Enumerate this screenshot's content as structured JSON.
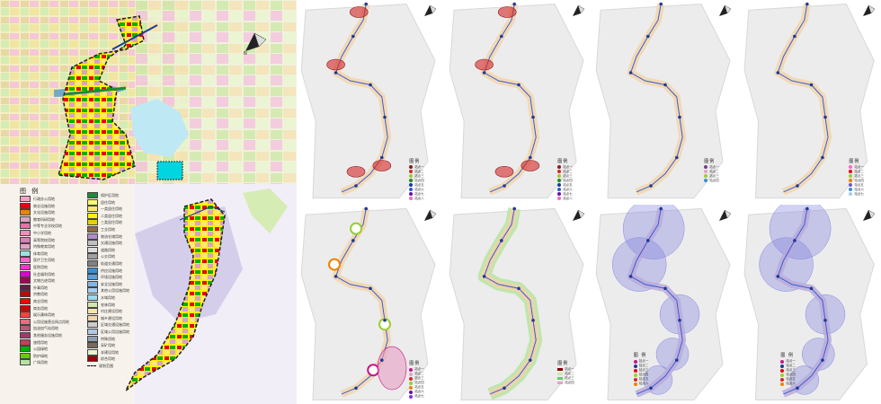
{
  "main_legend": {
    "title": "图 例",
    "column_a": [
      {
        "label": "行政办公用地",
        "color": "#f2a3c4"
      },
      {
        "label": "商业设施用地",
        "color": "#e60012"
      },
      {
        "label": "文化设施用地",
        "color": "#f08200"
      },
      {
        "label": "教育科研用地",
        "color": "#d9a3c4"
      },
      {
        "label": "中等专业学校用地",
        "color": "#ee6fa5"
      },
      {
        "label": "中小学用地",
        "color": "#ec8fbb"
      },
      {
        "label": "高等院校用地",
        "color": "#dd7fb6"
      },
      {
        "label": "特殊教育用地",
        "color": "#e8a0c6"
      },
      {
        "label": "体育用地",
        "color": "#9be3e2"
      },
      {
        "label": "医疗卫生用地",
        "color": "#ff66cc"
      },
      {
        "label": "医院用地",
        "color": "#ff33cc"
      },
      {
        "label": "社会福利用地",
        "color": "#e000d0"
      },
      {
        "label": "文物古迹用地",
        "color": "#a3005a"
      },
      {
        "label": "外事用地",
        "color": "#5f1f46"
      },
      {
        "label": "宗教用地",
        "color": "#c80000"
      },
      {
        "label": "商业用地",
        "color": "#ff0000"
      },
      {
        "label": "商务用地",
        "color": "#d40000"
      },
      {
        "label": "娱乐康体用地",
        "color": "#ff4040"
      },
      {
        "label": "公用设施营业网点用地",
        "color": "#e07080"
      },
      {
        "label": "加油加气站用地",
        "color": "#b85b7a"
      },
      {
        "label": "其他服务设施用地",
        "color": "#9a3d6d"
      },
      {
        "label": "旅馆用地",
        "color": "#c04060"
      },
      {
        "label": "公园绿地",
        "color": "#00b000"
      },
      {
        "label": "防护绿地",
        "color": "#66cc00"
      },
      {
        "label": "广场用地",
        "color": "#b7e3a0"
      }
    ],
    "column_b": [
      {
        "label": "保护区用地",
        "color": "#1f8a3a"
      },
      {
        "label": "居住用地",
        "color": "#ffff66"
      },
      {
        "label": "一类居住用地",
        "color": "#ffe680"
      },
      {
        "label": "二类居住用地",
        "color": "#fff200"
      },
      {
        "label": "三类居住用地",
        "color": "#e6d200"
      },
      {
        "label": "工业用地",
        "color": "#8c6a4a"
      },
      {
        "label": "物流仓储用地",
        "color": "#b08cc8"
      },
      {
        "label": "交通设施用地",
        "color": "#bfbfbf"
      },
      {
        "label": "道路用地",
        "color": "#dcdcdc"
      },
      {
        "label": "公交用地",
        "color": "#a0a0a0"
      },
      {
        "label": "轨道交通用地",
        "color": "#808080"
      },
      {
        "label": "供应设施用地",
        "color": "#3d8fd1"
      },
      {
        "label": "环境设施用地",
        "color": "#5aa0dc"
      },
      {
        "label": "安全设施用地",
        "color": "#7fb8e6"
      },
      {
        "label": "其他公用设施用地",
        "color": "#a3cdee"
      },
      {
        "label": "水域用地",
        "color": "#9fd9f0"
      },
      {
        "label": "农林用地",
        "color": "#cfe8a8"
      },
      {
        "label": "村庄建设用地",
        "color": "#f5e3b3"
      },
      {
        "label": "城乡建设用地",
        "color": "#f2d5a8"
      },
      {
        "label": "区域交通设施用地",
        "color": "#cccccc"
      },
      {
        "label": "区域公用设施用地",
        "color": "#b3c7e6"
      },
      {
        "label": "特殊用地",
        "color": "#8fa0b0"
      },
      {
        "label": "采矿用地",
        "color": "#7a6a5a"
      },
      {
        "label": "非建设用地",
        "color": "#e8f5d0"
      },
      {
        "label": "综合用地",
        "color": "#a00000"
      },
      {
        "label": "规划范围",
        "color": "#000000",
        "dashed": true
      }
    ]
  },
  "panels": {
    "p1": {
      "legend_title": "图例",
      "items": [
        {
          "label": "站点一",
          "color": "#8b1a1a"
        },
        {
          "label": "站点二",
          "color": "#d62728"
        },
        {
          "label": "站点三",
          "color": "#9acd32"
        },
        {
          "label": "站点四",
          "color": "#228b22"
        },
        {
          "label": "站点五",
          "color": "#1f3a93"
        },
        {
          "label": "站点六",
          "color": "#2a5bd7"
        },
        {
          "label": "站点七",
          "color": "#6a0dad"
        },
        {
          "label": "站点八",
          "color": "#ff66cc"
        }
      ]
    },
    "p2": {
      "legend_title": "图例",
      "items": [
        {
          "label": "站点一",
          "color": "#8b1a1a"
        },
        {
          "label": "站点二",
          "color": "#d62728"
        },
        {
          "label": "站点三",
          "color": "#9acd32"
        },
        {
          "label": "站点四",
          "color": "#228b22"
        },
        {
          "label": "站点五",
          "color": "#1f3a93"
        },
        {
          "label": "站点六",
          "color": "#2a5bd7"
        },
        {
          "label": "站点七",
          "color": "#6a0dad"
        },
        {
          "label": "站点八",
          "color": "#ff66cc"
        }
      ]
    },
    "p3": {
      "legend_title": "图例",
      "items": [
        {
          "label": "站点一",
          "color": "#7a3b8f"
        },
        {
          "label": "站点二",
          "color": "#e8a0c6"
        },
        {
          "label": "站点三",
          "color": "#9acd32"
        },
        {
          "label": "站点四",
          "color": "#3d8fd1"
        }
      ]
    },
    "p4": {
      "legend_title": "图例",
      "items": [
        {
          "label": "站点一",
          "color": "#ff66cc"
        },
        {
          "label": "站点二",
          "color": "#e60012"
        },
        {
          "label": "站点三",
          "color": "#9acd32"
        },
        {
          "label": "站点四",
          "color": "#f08200"
        },
        {
          "label": "站点五",
          "color": "#6a5acd"
        },
        {
          "label": "站点六",
          "color": "#3d8fd1"
        },
        {
          "label": "站点七",
          "color": "#a3cdee"
        }
      ]
    },
    "p5": {
      "legend_title": "图例",
      "items": [
        {
          "label": "站点一",
          "color": "#c71585"
        },
        {
          "label": "站点二",
          "color": "#e8a0c6"
        },
        {
          "label": "站点三",
          "color": "#d62728"
        },
        {
          "label": "站点四",
          "color": "#9acd32"
        },
        {
          "label": "站点五",
          "color": "#f08200"
        },
        {
          "label": "站点六",
          "color": "#6a0dad"
        },
        {
          "label": "站点七",
          "color": "#8a2be2"
        }
      ]
    },
    "p6": {
      "legend_title": "图例",
      "items": [
        {
          "label": "站点一",
          "color": "#8b0000"
        },
        {
          "label": "站点二",
          "color": "#cfe8a8"
        },
        {
          "label": "站点三",
          "color": "#66cc66"
        },
        {
          "label": "站点四",
          "color": "#e8a0c6"
        }
      ]
    },
    "p7": {
      "legend_title": "图 例",
      "items": [
        {
          "label": "站点一",
          "color": "#c71585"
        },
        {
          "label": "站点二",
          "color": "#1f3a93"
        },
        {
          "label": "站点三",
          "color": "#e60012"
        },
        {
          "label": "站点四",
          "color": "#9acd32"
        },
        {
          "label": "站点五",
          "color": "#d62728"
        },
        {
          "label": "站点六",
          "color": "#f08200"
        }
      ]
    },
    "p8": {
      "legend_title": "图 例",
      "items": [
        {
          "label": "站点一",
          "color": "#c71585"
        },
        {
          "label": "站点二",
          "color": "#1f3a93"
        },
        {
          "label": "站点三",
          "color": "#e60012"
        },
        {
          "label": "站点四",
          "color": "#9acd32"
        },
        {
          "label": "站点五",
          "color": "#d62728"
        },
        {
          "label": "站点六",
          "color": "#f08200"
        }
      ]
    }
  }
}
